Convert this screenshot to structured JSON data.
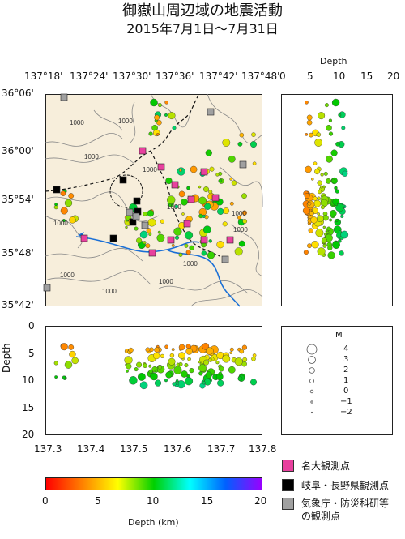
{
  "title": "御嶽山周辺域の地震活動",
  "period": "2015年7月1日〜7月31日",
  "map": {
    "lon_ticks": [
      "137°18'",
      "137°24'",
      "137°30'",
      "137°36'",
      "137°42'",
      "137°48'"
    ],
    "lat_ticks": [
      "36°06'",
      "36°00'",
      "35°54'",
      "35°48'",
      "35°42'"
    ],
    "contour_labels": [
      "1000",
      "1000",
      "1000",
      "1000",
      "1000",
      "1000",
      "1000",
      "1000",
      "1000",
      "1000",
      "1000",
      "1000"
    ]
  },
  "depth_panel": {
    "title": "Depth",
    "ticks": [
      "0",
      "5",
      "10",
      "15",
      "20"
    ]
  },
  "cross_section": {
    "ylabel": "Depth",
    "y_ticks": [
      "0",
      "5",
      "10",
      "15",
      "20"
    ],
    "x_ticks": [
      "137.3",
      "137.4",
      "137.5",
      "137.6",
      "137.7",
      "137.8"
    ]
  },
  "magnitude_legend": {
    "title": "M",
    "labels": [
      "4",
      "3",
      "2",
      "1",
      "0",
      "−1",
      "−2"
    ]
  },
  "colorbar": {
    "ticks": [
      "0",
      "5",
      "10",
      "15",
      "20"
    ],
    "label": "Depth (km)",
    "colors": [
      "#ff0000",
      "#ff8000",
      "#ffff00",
      "#00d000",
      "#00ffff",
      "#0060ff",
      "#9900ff"
    ]
  },
  "station_legend": [
    {
      "label": "名大観測点",
      "color": "#e8409e"
    },
    {
      "label": "岐阜・長野県観測点",
      "color": "#000000"
    },
    {
      "label": "気象庁・防災科研等",
      "color": "#a0a0a0"
    },
    {
      "label": "の観測点",
      "color": ""
    }
  ]
}
